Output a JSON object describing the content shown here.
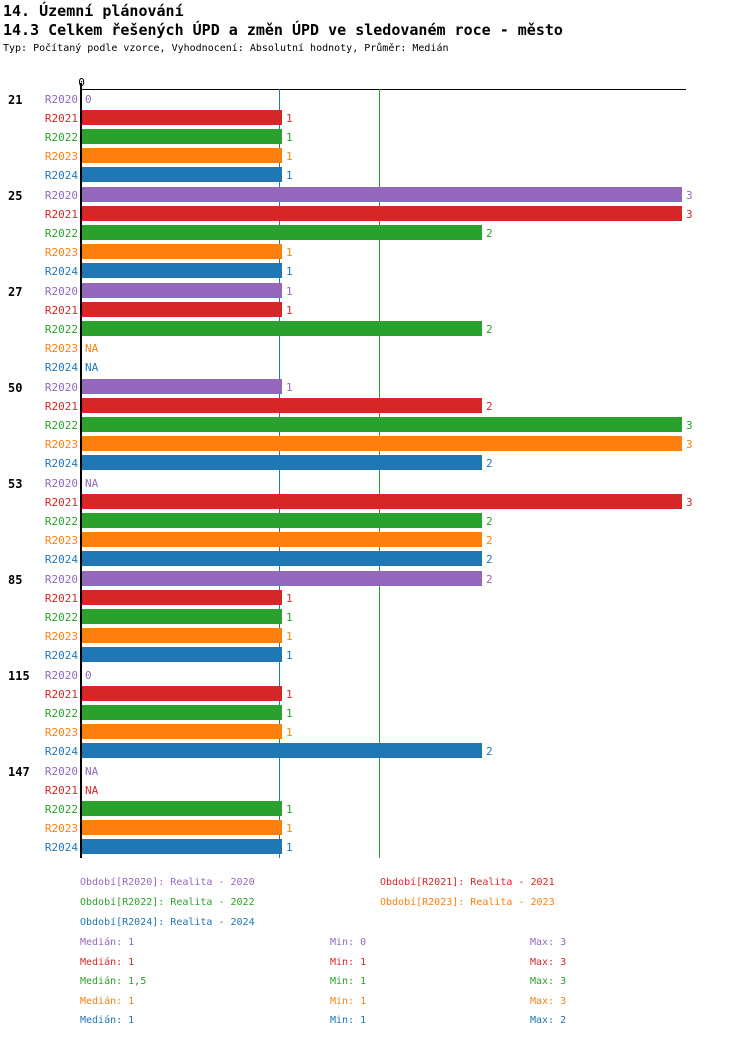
{
  "header": {
    "title1": "14. Územní plánování",
    "title2": "14.3 Celkem řešených ÚPD a změn ÚPD ve sledovaném roce - město",
    "subtitle": "Typ: Počítaný podle vzorce, Vyhodnocení: Absolutní hodnoty, Průměr: Medián"
  },
  "chart_data": {
    "type": "bar",
    "orientation": "horizontal",
    "x_axis": {
      "min": 0,
      "max": 3,
      "zero_label": "0",
      "grid": false
    },
    "na_text": "NA",
    "series": [
      {
        "id": "R2020",
        "color": "#9467bd",
        "legend": "Období[R2020]: Realita - 2020",
        "median": "1",
        "min": "0",
        "max": "3"
      },
      {
        "id": "R2021",
        "color": "#d62728",
        "legend": "Období[R2021]: Realita - 2021",
        "median": "1",
        "min": "1",
        "max": "3"
      },
      {
        "id": "R2022",
        "color": "#2ca02c",
        "legend": "Období[R2022]: Realita - 2022",
        "median": "1,5",
        "min": "1",
        "max": "3"
      },
      {
        "id": "R2023",
        "color": "#ff7f0e",
        "legend": "Období[R2023]: Realita - 2023",
        "median": "1",
        "min": "1",
        "max": "3"
      },
      {
        "id": "R2024",
        "color": "#1f77b4",
        "legend": "Období[R2024]: Realita - 2024",
        "median": "1",
        "min": "1",
        "max": "2"
      }
    ],
    "groups": [
      {
        "label": "21",
        "values": [
          0,
          1,
          1,
          1,
          1
        ]
      },
      {
        "label": "25",
        "values": [
          3,
          3,
          2,
          1,
          1
        ]
      },
      {
        "label": "27",
        "values": [
          1,
          1,
          2,
          "NA",
          "NA"
        ]
      },
      {
        "label": "50",
        "values": [
          1,
          2,
          3,
          3,
          2
        ]
      },
      {
        "label": "53",
        "values": [
          "NA",
          3,
          2,
          2,
          2
        ]
      },
      {
        "label": "85",
        "values": [
          2,
          1,
          1,
          1,
          1
        ]
      },
      {
        "label": "115",
        "values": [
          0,
          1,
          1,
          1,
          2
        ]
      },
      {
        "label": "147",
        "values": [
          "NA",
          "NA",
          1,
          1,
          1
        ]
      }
    ],
    "median_lines": [
      {
        "series": "R2024",
        "value": 1,
        "color": "#1f77b4"
      },
      {
        "series": "R2022",
        "value": 1.5,
        "color": "#2ca02c"
      }
    ],
    "stats_labels": {
      "median": "Medián",
      "min": "Min",
      "max": "Max"
    }
  }
}
